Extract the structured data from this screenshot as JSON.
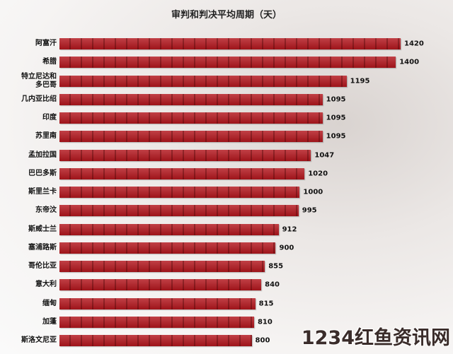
{
  "chart_data": {
    "type": "hbar",
    "title": "审判和判决平均周期（天）",
    "categories": [
      "阿富汗",
      "希腊",
      "特立尼达和多巴哥",
      "几内亚比绍",
      "印度",
      "苏里南",
      "孟加拉国",
      "巴巴多斯",
      "斯里兰卡",
      "东帝汶",
      "斯威士兰",
      "塞浦路斯",
      "哥伦比亚",
      "意大利",
      "缅甸",
      "加蓬",
      "斯洛文尼亚"
    ],
    "values": [
      1420,
      1400,
      1195,
      1095,
      1095,
      1095,
      1047,
      1020,
      1000,
      995,
      912,
      900,
      855,
      840,
      815,
      810,
      800
    ],
    "color": "#b3161d"
  },
  "watermark": "1234红鱼资讯网"
}
